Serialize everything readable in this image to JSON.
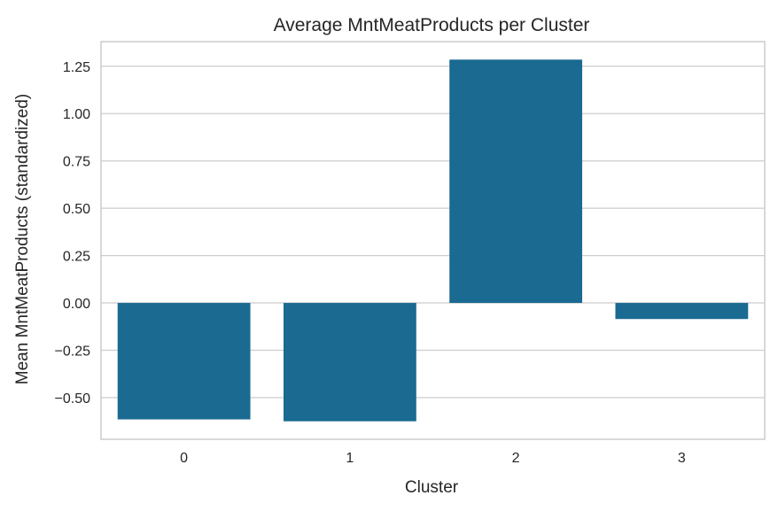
{
  "chart_data": {
    "type": "bar",
    "title": "Average MntMeatProducts per Cluster",
    "xlabel": "Cluster",
    "ylabel": "Mean MntMeatProducts (standardized)",
    "categories": [
      "0",
      "1",
      "2",
      "3"
    ],
    "values": [
      -0.615,
      -0.625,
      1.285,
      -0.085
    ],
    "yticks": [
      -0.5,
      -0.25,
      0.0,
      0.25,
      0.5,
      0.75,
      1.0,
      1.25
    ],
    "ytick_labels": [
      "−0.50",
      "−0.25",
      "0.00",
      "0.25",
      "0.50",
      "0.75",
      "1.00",
      "1.25"
    ],
    "ylim": [
      -0.72,
      1.38
    ],
    "grid": true,
    "bar_color": "#1a6a91",
    "grid_color": "#cccccc",
    "frame_color": "#cccccc",
    "text_color": "#262626"
  }
}
